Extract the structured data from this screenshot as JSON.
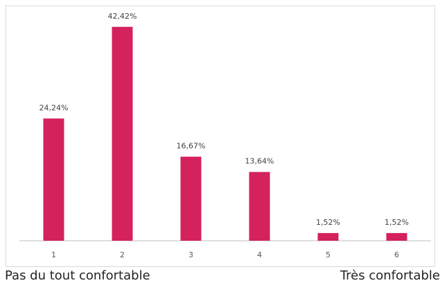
{
  "chart_data": {
    "type": "bar",
    "categories": [
      "1",
      "2",
      "3",
      "4",
      "5",
      "6"
    ],
    "values": [
      24.24,
      42.42,
      16.67,
      13.64,
      1.52,
      1.52
    ],
    "data_labels": [
      "24,24%",
      "42,42%",
      "16,67%",
      "13,64%",
      "1,52%",
      "1,52%"
    ],
    "title": "",
    "xlabel": "",
    "ylabel": "",
    "ylim": [
      0,
      45
    ],
    "grid": false,
    "legend": "none",
    "bar_color": "#d4225c"
  },
  "scale_labels": {
    "left": "Pas du tout confortable",
    "right": "Très confortable"
  }
}
